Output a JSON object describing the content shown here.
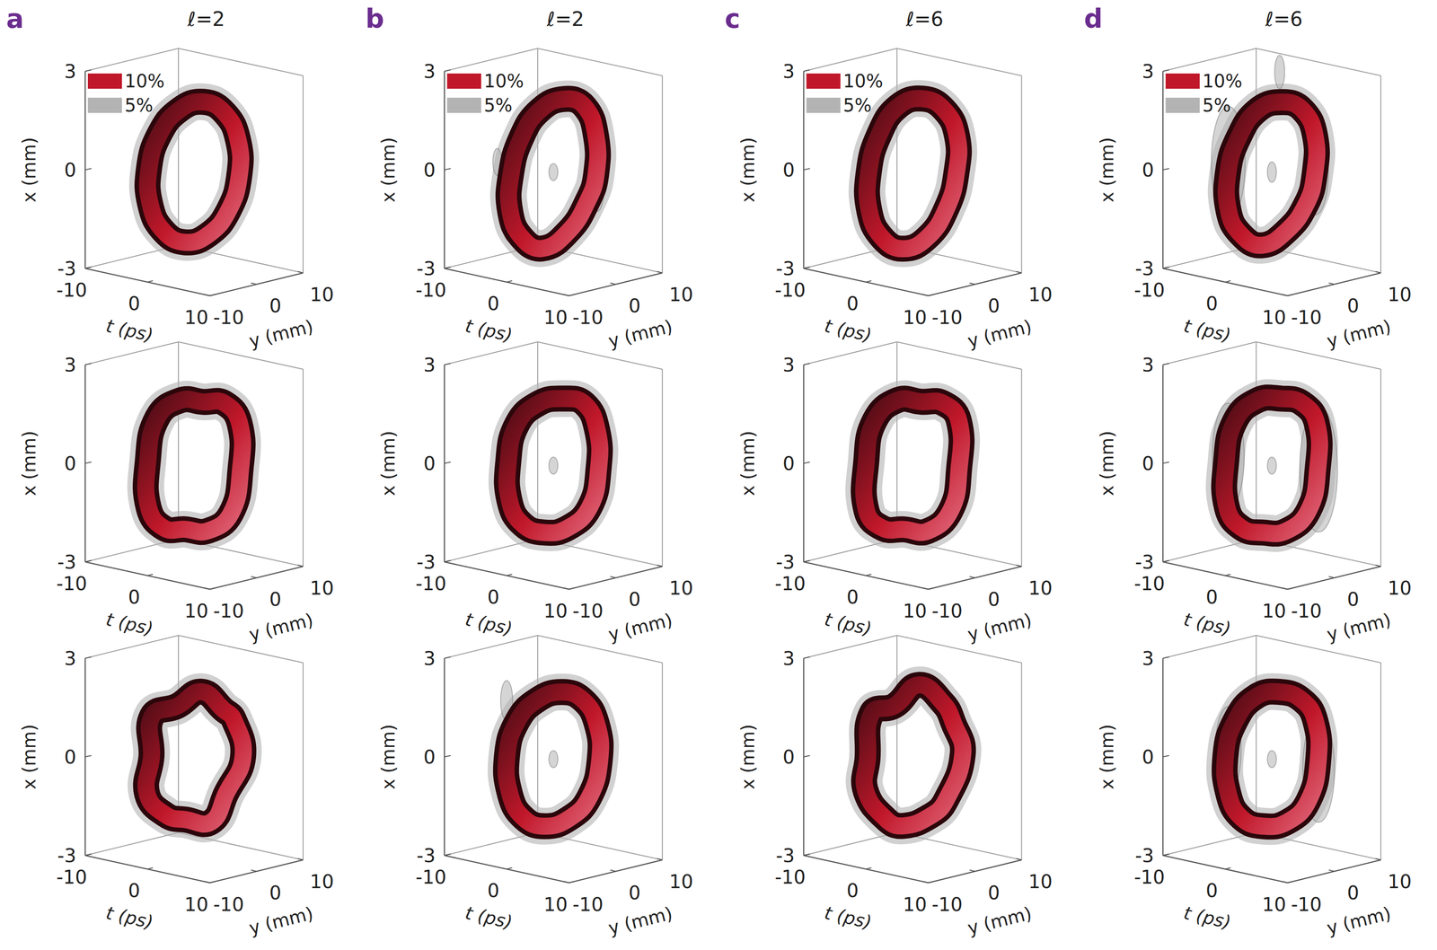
{
  "chart_data": {
    "type": "isosurface3d",
    "xlabel": "x (mm)",
    "tlabel": "t (ps)",
    "ylabel": "y (mm)",
    "xlim": [
      -3,
      3
    ],
    "xticks": [
      -3,
      0,
      3
    ],
    "tlim": [
      -10,
      10
    ],
    "tticks": [
      -10,
      0,
      10
    ],
    "ylim": [
      -10,
      10
    ],
    "yticks": [
      -10,
      0,
      10
    ],
    "legend": "upper left",
    "series": [
      {
        "name": "10%",
        "color": "#c0182a"
      },
      {
        "name": "5%",
        "color": "#b3b3b3"
      }
    ],
    "columns": [
      {
        "letter": "a",
        "title": "ℓ=2",
        "rows": [
          {
            "centerline": [
              [
                5,
                3,
                0
              ],
              [
                5.1,
                2.6,
                1.1
              ],
              [
                3.8,
                1.5,
                1.9
              ],
              [
                1.5,
                0,
                2.2
              ],
              [
                -1.2,
                -1.5,
                1.9
              ],
              [
                -3.6,
                -2.6,
                1.1
              ],
              [
                -5,
                -3,
                0
              ],
              [
                -5.1,
                -2.6,
                -1.1
              ],
              [
                -3.8,
                -1.5,
                -1.9
              ],
              [
                -1.5,
                0,
                -2.2
              ],
              [
                1.2,
                1.5,
                -1.9
              ],
              [
                3.6,
                2.6,
                -1.1
              ]
            ],
            "lobes": []
          },
          {
            "centerline": [
              [
                5.2,
                3,
                0
              ],
              [
                5.2,
                2.8,
                1.4
              ],
              [
                3.6,
                1.6,
                2.0
              ],
              [
                1.5,
                0,
                2.0
              ],
              [
                -1,
                -1.6,
                2.0
              ],
              [
                -3.8,
                -2.8,
                1.4
              ],
              [
                -5.2,
                -3,
                0
              ],
              [
                -5.2,
                -2.8,
                -1.4
              ],
              [
                -3.6,
                -1.6,
                -2.0
              ],
              [
                -1.5,
                0,
                -2.0
              ],
              [
                1,
                1.6,
                -2.0
              ],
              [
                3.8,
                2.8,
                -1.4
              ]
            ],
            "lobes": []
          },
          {
            "centerline": [
              [
                5.6,
                3,
                0.2
              ],
              [
                4.4,
                2.6,
                1.3
              ],
              [
                3.6,
                1.5,
                1.6
              ],
              [
                1.2,
                0,
                2.1
              ],
              [
                -1.6,
                -1.5,
                1.6
              ],
              [
                -4.8,
                -2.6,
                1.2
              ],
              [
                -4.6,
                -3,
                0
              ],
              [
                -5.6,
                -2.6,
                -1.2
              ],
              [
                -3.3,
                -1.5,
                -1.8
              ],
              [
                -1.4,
                0,
                -1.9
              ],
              [
                1.6,
                1.5,
                -1.9
              ],
              [
                3.2,
                2.6,
                -1.0
              ]
            ],
            "lobes": []
          }
        ]
      },
      {
        "letter": "b",
        "title": "ℓ=2",
        "rows": [
          {
            "centerline": [
              [
                4.6,
                3,
                0
              ],
              [
                4.9,
                2.6,
                1.2
              ],
              [
                3.9,
                1.5,
                2.1
              ],
              [
                1.8,
                0,
                2.3
              ],
              [
                -1.0,
                -1.5,
                1.9
              ],
              [
                -3.2,
                -2.6,
                1.0
              ],
              [
                -4.6,
                -3,
                -0.2
              ],
              [
                -5.0,
                -2.6,
                -1.3
              ],
              [
                -4.0,
                -1.5,
                -2.1
              ],
              [
                -1.8,
                0,
                -2.4
              ],
              [
                1.3,
                1.5,
                -1.8
              ],
              [
                3.6,
                2.6,
                -0.8
              ]
            ],
            "lobes": [
              {
                "t": 0,
                "y": 0,
                "x": 0,
                "half_height": 0.15
              },
              {
                "t": -7,
                "y": 0,
                "x": -1.6,
                "half_height": 0.7
              },
              {
                "t": -6,
                "y": -4,
                "x": 0.2,
                "half_height": 0.3
              },
              {
                "t": 7,
                "y": 0,
                "x": -0.2,
                "half_height": 0.6
              }
            ]
          },
          {
            "centerline": [
              [
                5,
                3,
                0
              ],
              [
                5,
                2.7,
                1.2
              ],
              [
                3.8,
                1.5,
                2.0
              ],
              [
                1.5,
                0,
                2.1
              ],
              [
                -1.2,
                -1.5,
                1.9
              ],
              [
                -3.8,
                -2.7,
                1.2
              ],
              [
                -5,
                -3,
                0
              ],
              [
                -5,
                -2.7,
                -1.2
              ],
              [
                -3.8,
                -1.5,
                -1.9
              ],
              [
                -1.5,
                0,
                -2.1
              ],
              [
                1.2,
                1.5,
                -1.9
              ],
              [
                3.8,
                2.7,
                -1.2
              ]
            ],
            "lobes": [
              {
                "t": 0,
                "y": 0,
                "x": 0,
                "half_height": 0.15
              },
              {
                "t": -7,
                "y": 0,
                "x": 0.1,
                "half_height": 0.5
              },
              {
                "t": 7,
                "y": 0,
                "x": 0.2,
                "half_height": 0.5
              }
            ]
          },
          {
            "centerline": [
              [
                5.2,
                3,
                0.1
              ],
              [
                5.0,
                2.6,
                1.2
              ],
              [
                3.6,
                1.5,
                1.9
              ],
              [
                1.4,
                0,
                2.1
              ],
              [
                -1.4,
                -1.5,
                1.8
              ],
              [
                -3.8,
                -2.6,
                1.1
              ],
              [
                -5.2,
                -3,
                0
              ],
              [
                -5.0,
                -2.6,
                -1.2
              ],
              [
                -3.6,
                -1.5,
                -1.9
              ],
              [
                -1.4,
                0,
                -2.1
              ],
              [
                1.4,
                1.5,
                -1.8
              ],
              [
                3.8,
                2.6,
                -1.1
              ]
            ],
            "lobes": [
              {
                "t": 0,
                "y": 0,
                "x": 0,
                "half_height": 0.15
              },
              {
                "t": -6,
                "y": -2,
                "x": 1.6,
                "half_height": 0.5
              },
              {
                "t": -7,
                "y": 0,
                "x": -1.2,
                "half_height": 0.6
              },
              {
                "t": 7,
                "y": 0,
                "x": -0.2,
                "half_height": 0.5
              }
            ]
          }
        ]
      },
      {
        "letter": "c",
        "title": "ℓ=6",
        "rows": [
          {
            "centerline": [
              [
                4.8,
                3,
                0.1
              ],
              [
                5.2,
                2.6,
                1.2
              ],
              [
                4.0,
                1.5,
                2.0
              ],
              [
                1.6,
                0,
                2.3
              ],
              [
                -1.2,
                -1.5,
                2.0
              ],
              [
                -3.4,
                -2.6,
                1.1
              ],
              [
                -4.8,
                -3,
                -0.1
              ],
              [
                -5.0,
                -2.6,
                -1.3
              ],
              [
                -3.8,
                -1.5,
                -2.1
              ],
              [
                -1.6,
                0,
                -2.4
              ],
              [
                1.2,
                1.5,
                -2.0
              ],
              [
                3.6,
                2.6,
                -1.0
              ]
            ],
            "lobes": []
          },
          {
            "centerline": [
              [
                5.2,
                3,
                0
              ],
              [
                5.3,
                2.8,
                1.5
              ],
              [
                3.6,
                1.6,
                2.0
              ],
              [
                1.4,
                0,
                2.0
              ],
              [
                -1.2,
                -1.6,
                2.0
              ],
              [
                -4.0,
                -2.8,
                1.3
              ],
              [
                -5.2,
                -3,
                0
              ],
              [
                -5.3,
                -2.8,
                -1.5
              ],
              [
                -3.6,
                -1.6,
                -2.0
              ],
              [
                -1.4,
                0,
                -2.0
              ],
              [
                1.2,
                1.6,
                -2.0
              ],
              [
                4.0,
                2.8,
                -1.3
              ]
            ],
            "lobes": []
          },
          {
            "centerline": [
              [
                5.8,
                3,
                0.3
              ],
              [
                4.6,
                2.6,
                1.2
              ],
              [
                3.8,
                1.5,
                1.8
              ],
              [
                1.0,
                0,
                2.3
              ],
              [
                -1.8,
                -1.5,
                1.6
              ],
              [
                -4.6,
                -2.6,
                1.3
              ],
              [
                -5.0,
                -3,
                -0.1
              ],
              [
                -5.6,
                -2.6,
                -1.1
              ],
              [
                -3.2,
                -1.5,
                -1.9
              ],
              [
                -1.6,
                0,
                -2.1
              ],
              [
                1.8,
                1.5,
                -1.7
              ],
              [
                3.4,
                2.6,
                -1.2
              ]
            ],
            "lobes": []
          }
        ]
      },
      {
        "letter": "d",
        "title": "ℓ=6",
        "rows": [
          {
            "centerline": [
              [
                4.6,
                3,
                0
              ],
              [
                5.0,
                2.6,
                1.2
              ],
              [
                3.8,
                1.5,
                2.0
              ],
              [
                1.7,
                0,
                2.2
              ],
              [
                -1.1,
                -1.5,
                1.9
              ],
              [
                -3.4,
                -2.6,
                1.0
              ],
              [
                -4.8,
                -3,
                -0.1
              ],
              [
                -5.0,
                -2.6,
                -1.3
              ],
              [
                -3.9,
                -1.5,
                -2.0
              ],
              [
                -1.7,
                0,
                -2.3
              ],
              [
                1.2,
                1.5,
                -1.8
              ],
              [
                3.6,
                2.6,
                -0.9
              ]
            ],
            "lobes": [
              {
                "t": 0,
                "y": 0,
                "x": 0,
                "half_height": 0.2
              },
              {
                "t": -7,
                "y": 0,
                "x": 0,
                "half_height": 1.6
              },
              {
                "t": 7,
                "y": 0,
                "x": 0.3,
                "half_height": 1.2
              },
              {
                "t": -1,
                "y": 3,
                "x": 2.9,
                "half_height": 0.4
              }
            ]
          },
          {
            "centerline": [
              [
                5.1,
                3,
                0
              ],
              [
                5.1,
                2.8,
                1.4
              ],
              [
                3.6,
                1.6,
                2.0
              ],
              [
                1.5,
                0,
                2.1
              ],
              [
                -1.1,
                -1.6,
                2.0
              ],
              [
                -3.8,
                -2.8,
                1.3
              ],
              [
                -5.1,
                -3,
                0
              ],
              [
                -5.1,
                -2.8,
                -1.4
              ],
              [
                -3.6,
                -1.6,
                -2.0
              ],
              [
                -1.5,
                0,
                -2.1
              ],
              [
                1.1,
                1.6,
                -2.0
              ],
              [
                3.8,
                2.8,
                -1.3
              ]
            ],
            "lobes": [
              {
                "t": 0,
                "y": 0,
                "x": 0,
                "half_height": 0.15
              },
              {
                "t": -7,
                "y": 0,
                "x": 0,
                "half_height": 1.5
              },
              {
                "t": 7.5,
                "y": 0,
                "x": 0.2,
                "half_height": 1.8
              }
            ]
          },
          {
            "centerline": [
              [
                5.2,
                3,
                0.1
              ],
              [
                5.0,
                2.6,
                1.3
              ],
              [
                3.7,
                1.5,
                1.9
              ],
              [
                1.4,
                0,
                2.1
              ],
              [
                -1.4,
                -1.5,
                1.9
              ],
              [
                -3.9,
                -2.6,
                1.1
              ],
              [
                -5.2,
                -3,
                0
              ],
              [
                -5.0,
                -2.6,
                -1.2
              ],
              [
                -3.7,
                -1.5,
                -1.9
              ],
              [
                -1.4,
                0,
                -2.1
              ],
              [
                1.4,
                1.5,
                -1.9
              ],
              [
                3.9,
                2.6,
                -1.2
              ]
            ],
            "lobes": [
              {
                "t": 0,
                "y": 0,
                "x": 0,
                "half_height": 0.15
              },
              {
                "t": -7,
                "y": 0,
                "x": 0,
                "half_height": 1.2
              },
              {
                "t": 7.5,
                "y": 0,
                "x": 0,
                "half_height": 1.5
              }
            ]
          }
        ]
      }
    ]
  }
}
